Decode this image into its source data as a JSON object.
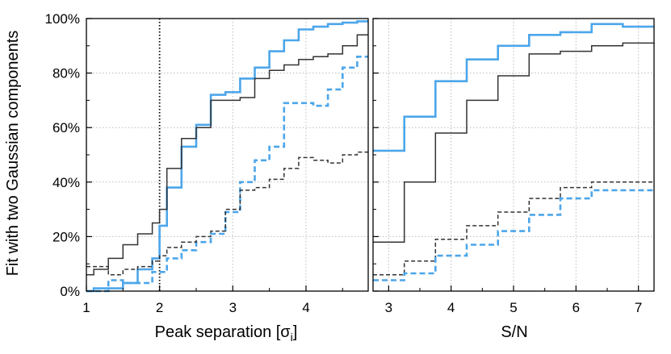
{
  "chart_data": {
    "type": "line",
    "ylabel": "Fit with two Gaussian components",
    "grid": true,
    "style_notes": {
      "step_plot": true,
      "solid_line": "observed",
      "dashed_line": "alternative"
    },
    "colors": {
      "blue": "#4ca6ea",
      "dark": "#333333",
      "grid": "#bbbbbb",
      "vline": "#000000"
    },
    "panels": [
      {
        "xlabel_main": "Peak separation [σ",
        "xlabel_sub": "i",
        "xlabel_close": "]",
        "xlim": [
          1,
          4.85
        ],
        "ylim": [
          0,
          100
        ],
        "xticks": [
          1,
          2,
          3,
          4
        ],
        "yticks": [
          0,
          20,
          40,
          60,
          80,
          100
        ],
        "ytick_labels": [
          "0%",
          "20%",
          "40%",
          "60%",
          "80%",
          "100%"
        ],
        "vline_x": 2,
        "series": [
          {
            "color": "blue",
            "dash": false,
            "edges": [
              1,
              1.1,
              1.3,
              1.5,
              1.7,
              1.9,
              2.0,
              2.1,
              2.3,
              2.5,
              2.7,
              2.9,
              3.1,
              3.3,
              3.5,
              3.7,
              3.9,
              4.1,
              4.3,
              4.5,
              4.7,
              4.85
            ],
            "values": [
              0,
              1,
              1,
              3,
              8,
              12,
              24,
              38,
              53,
              61,
              72,
              73,
              78,
              82,
              88,
              92,
              96,
              97,
              98,
              98.5,
              99
            ]
          },
          {
            "color": "dark",
            "dash": false,
            "edges": [
              1,
              1.1,
              1.3,
              1.5,
              1.7,
              1.9,
              2.0,
              2.1,
              2.3,
              2.5,
              2.7,
              2.9,
              3.1,
              3.3,
              3.5,
              3.7,
              3.9,
              4.1,
              4.3,
              4.5,
              4.7,
              4.85
            ],
            "values": [
              6,
              8,
              12,
              17,
              21,
              25,
              30,
              45,
              56,
              60,
              70,
              70,
              71,
              78,
              81,
              83,
              85,
              86,
              87,
              90,
              94
            ]
          },
          {
            "color": "blue",
            "dash": true,
            "edges": [
              1,
              1.1,
              1.3,
              1.5,
              1.7,
              1.9,
              2.0,
              2.1,
              2.3,
              2.5,
              2.7,
              2.9,
              3.1,
              3.3,
              3.5,
              3.7,
              3.9,
              4.1,
              4.3,
              4.5,
              4.7,
              4.85
            ],
            "values": [
              0,
              0,
              4,
              3,
              3,
              7,
              7,
              12,
              15,
              18,
              21,
              29,
              40,
              48,
              53,
              69,
              69,
              68,
              74,
              82,
              86
            ]
          },
          {
            "color": "dark",
            "dash": true,
            "edges": [
              1,
              1.1,
              1.3,
              1.5,
              1.7,
              1.9,
              2.0,
              2.1,
              2.3,
              2.5,
              2.7,
              2.9,
              3.1,
              3.3,
              3.5,
              3.7,
              3.9,
              4.1,
              4.3,
              4.5,
              4.7,
              4.85
            ],
            "values": [
              9,
              9,
              6,
              8,
              9,
              11,
              13,
              16,
              18,
              20,
              22,
              30,
              37,
              38,
              41,
              45,
              49,
              48,
              47,
              50,
              51
            ]
          }
        ]
      },
      {
        "xlabel_main": "S/N",
        "xlabel_sub": "",
        "xlabel_close": "",
        "xlim": [
          2.75,
          7.25
        ],
        "ylim": [
          0,
          100
        ],
        "xticks": [
          3,
          4,
          5,
          6,
          7
        ],
        "yticks": [
          0,
          20,
          40,
          60,
          80,
          100
        ],
        "series": [
          {
            "color": "blue",
            "dash": false,
            "edges": [
              2.75,
              3.25,
              3.75,
              4.25,
              4.75,
              5.25,
              5.75,
              6.25,
              6.75,
              7.25
            ],
            "values": [
              51.5,
              64,
              77,
              85,
              90,
              94,
              95,
              98,
              97
            ]
          },
          {
            "color": "dark",
            "dash": false,
            "edges": [
              2.75,
              3.25,
              3.75,
              4.25,
              4.75,
              5.25,
              5.75,
              6.25,
              6.75,
              7.25
            ],
            "values": [
              18,
              40,
              58,
              70,
              79,
              87,
              88,
              90,
              91
            ]
          },
          {
            "color": "dark",
            "dash": true,
            "edges": [
              2.75,
              3.25,
              3.75,
              4.25,
              4.75,
              5.25,
              5.75,
              6.25,
              6.75,
              7.25
            ],
            "values": [
              6,
              11,
              19,
              24,
              29,
              34,
              38,
              40,
              40
            ]
          },
          {
            "color": "blue",
            "dash": true,
            "edges": [
              2.75,
              3.25,
              3.75,
              4.25,
              4.75,
              5.25,
              5.75,
              6.25,
              6.75,
              7.25
            ],
            "values": [
              4,
              6.5,
              13,
              17,
              22,
              28,
              34,
              37,
              37
            ]
          }
        ]
      }
    ]
  }
}
